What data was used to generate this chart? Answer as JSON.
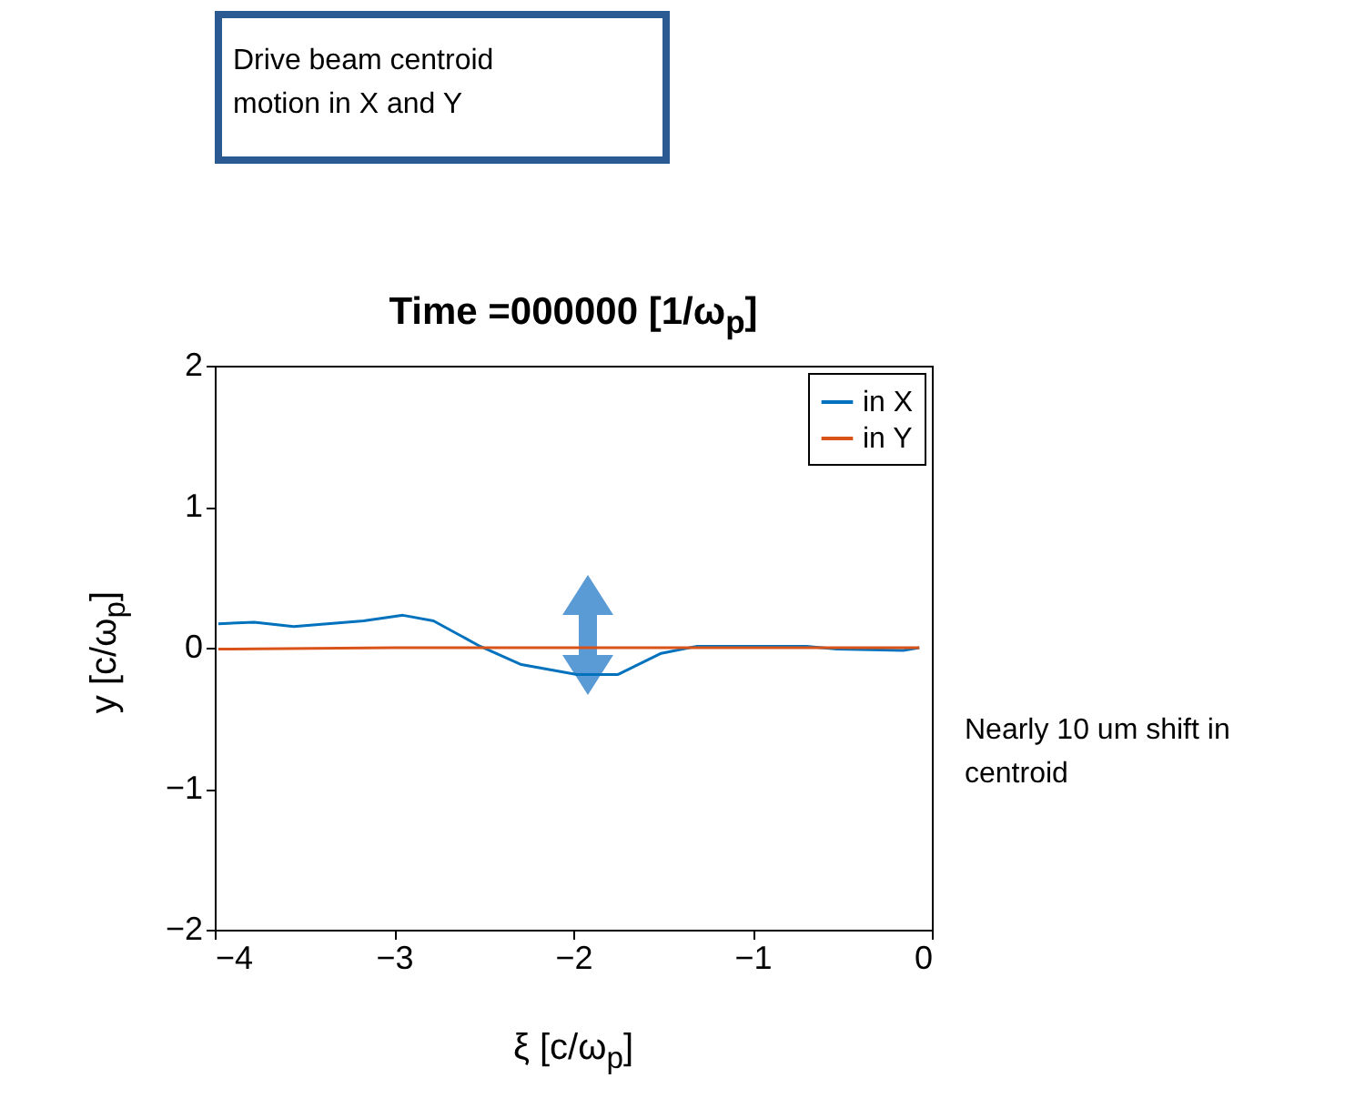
{
  "chart_data": {
    "type": "line",
    "title": "Time =000000 [1/ω$_{p}$]",
    "xlabel": "ξ [c/ω$_{p}$]",
    "ylabel": "y [c/ω$_{p}$]",
    "xlim": [
      -4,
      0
    ],
    "ylim": [
      -2,
      2
    ],
    "xticks": [
      -4,
      -3,
      -2,
      -1,
      0
    ],
    "yticks": [
      -2,
      -1,
      0,
      1,
      2
    ],
    "grid": false,
    "legend": "top right",
    "series": [
      {
        "name": "in X",
        "color": "#0072bd",
        "x": [
          -3.98,
          -3.78,
          -3.56,
          -3.17,
          -2.95,
          -2.78,
          -2.52,
          -2.29,
          -1.98,
          -1.75,
          -1.51,
          -1.31,
          -0.7,
          -0.53,
          -0.16,
          -0.07
        ],
        "values": [
          0.17,
          0.18,
          0.15,
          0.19,
          0.23,
          0.19,
          0.01,
          -0.12,
          -0.19,
          -0.19,
          -0.04,
          0.01,
          0.01,
          -0.01,
          -0.02,
          0
        ]
      },
      {
        "name": "in Y",
        "color": "#d95319",
        "x": [
          -3.98,
          -3,
          -2,
          -1,
          -0.07
        ],
        "values": [
          -0.01,
          0,
          0,
          0,
          0
        ]
      }
    ],
    "annotations": [
      "Drive beam centroid motion in X and Y",
      "Nearly 10 um shift in centroid"
    ]
  }
}
